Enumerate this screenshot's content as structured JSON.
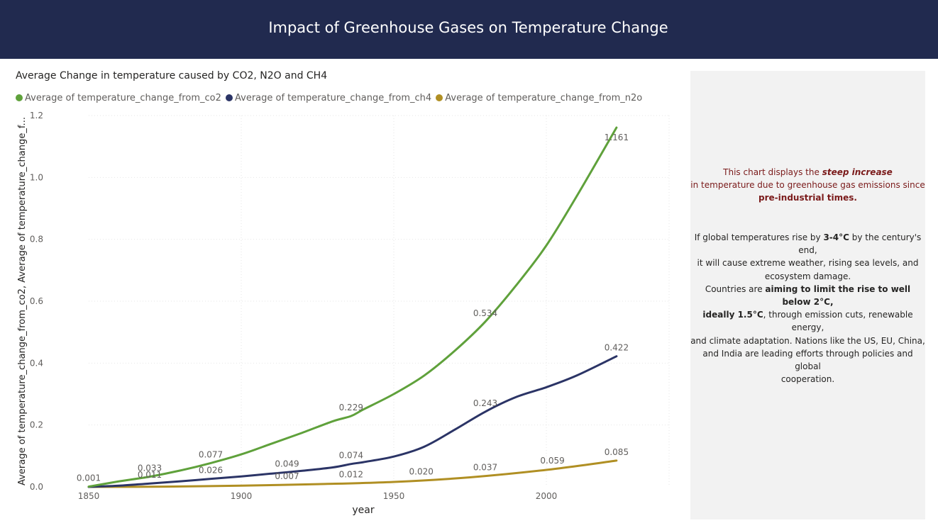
{
  "header": {
    "title": "Impact of Greenhouse Gases on Temperature Change",
    "background": "#212a4f"
  },
  "chart_title": "Average Change in temperature caused by CO2, N2O and CH4",
  "legend": [
    {
      "label": "Average of temperature_change_from_co2",
      "color": "#5fa13b"
    },
    {
      "label": "Average of temperature_change_from_ch4",
      "color": "#2b3466"
    },
    {
      "label": "Average of temperature_change_from_n2o",
      "color": "#b08f23"
    }
  ],
  "panel": {
    "note1_line1_a": "This chart displays the ",
    "note1_line1_b": "steep increase",
    "note1_line2": "in temperature due to greenhouse gas emissions since",
    "note1_line3": "pre-industrial times.",
    "note2_line1_a": "If global temperatures rise by ",
    "note2_line1_b": "3-4°C",
    "note2_line1_c": " by the century's end,",
    "note2_line2": "it will cause extreme weather, rising sea levels, and",
    "note2_line3": "ecosystem damage.",
    "note2_line4_a": "Countries are ",
    "note2_line4_b": "aiming to limit the rise to well below 2°C,",
    "note2_line5_a": "ideally 1.5°C",
    "note2_line5_b": ", through emission cuts, renewable energy,",
    "note2_line6": "and climate adaptation. Nations like the US, EU, China,",
    "note2_line7": "and India are leading efforts through policies and global",
    "note2_line8": "cooperation."
  },
  "chart_data": {
    "type": "line",
    "title": "Average Change in temperature caused by CO2, N2O and CH4",
    "xlabel": "year",
    "ylabel": "Average of temperature_change_from_co2, Average of temperature_change_f...",
    "xlim": [
      1850,
      2023
    ],
    "ylim": [
      0,
      1.2
    ],
    "xticks": [
      1850,
      1900,
      1950,
      2000
    ],
    "yticks": [
      0,
      0.2,
      0.4,
      0.6,
      0.8,
      1.0,
      1.2
    ],
    "ytick_labels": [
      "0.0",
      "0.2",
      "0.4",
      "0.6",
      "0.8",
      "1.0",
      "1.2"
    ],
    "grid": true,
    "legend_position": "top-left",
    "series": [
      {
        "name": "Average of temperature_change_from_co2",
        "color": "#5fa13b",
        "x": [
          1850,
          1860,
          1870,
          1880,
          1890,
          1900,
          1910,
          1920,
          1930,
          1936,
          1940,
          1950,
          1960,
          1970,
          1980,
          1990,
          2000,
          2010,
          2023
        ],
        "y": [
          0.001,
          0.018,
          0.033,
          0.053,
          0.077,
          0.105,
          0.14,
          0.175,
          0.212,
          0.229,
          0.25,
          0.3,
          0.36,
          0.44,
          0.534,
          0.65,
          0.78,
          0.94,
          1.161
        ]
      },
      {
        "name": "Average of temperature_change_from_ch4",
        "color": "#2b3466",
        "x": [
          1850,
          1860,
          1870,
          1880,
          1890,
          1900,
          1910,
          1920,
          1930,
          1936,
          1940,
          1950,
          1960,
          1970,
          1980,
          1990,
          2000,
          2010,
          2023
        ],
        "y": [
          0.0,
          0.004,
          0.011,
          0.018,
          0.026,
          0.034,
          0.043,
          0.052,
          0.063,
          0.074,
          0.08,
          0.098,
          0.13,
          0.185,
          0.243,
          0.29,
          0.322,
          0.36,
          0.422
        ]
      },
      {
        "name": "Average of temperature_change_from_n2o",
        "color": "#b08f23",
        "x": [
          1850,
          1875,
          1900,
          1925,
          1950,
          1975,
          2000,
          2023
        ],
        "y": [
          0.0,
          0.001,
          0.004,
          0.009,
          0.016,
          0.031,
          0.055,
          0.085
        ]
      }
    ],
    "data_labels": [
      {
        "series": 0,
        "x": 1850,
        "text": "0.001"
      },
      {
        "series": 0,
        "x": 1870,
        "text": "0.033"
      },
      {
        "series": 0,
        "x": 1890,
        "text": "0.077"
      },
      {
        "series": 0,
        "x": 1936,
        "text": "0.229"
      },
      {
        "series": 0,
        "x": 1980,
        "text": "0.534"
      },
      {
        "series": 0,
        "x": 2023,
        "text": "1.161"
      },
      {
        "series": 1,
        "x": 1870,
        "text": "0.011"
      },
      {
        "series": 1,
        "x": 1890,
        "text": "0.026"
      },
      {
        "series": 1,
        "x": 1915,
        "text": "0.049"
      },
      {
        "series": 1,
        "x": 1936,
        "text": "0.074"
      },
      {
        "series": 1,
        "x": 1980,
        "text": "0.243"
      },
      {
        "series": 1,
        "x": 2023,
        "text": "0.422"
      },
      {
        "series": 2,
        "x": 1915,
        "text": "0.007"
      },
      {
        "series": 2,
        "x": 1936,
        "text": "0.012"
      },
      {
        "series": 2,
        "x": 1959,
        "text": "0.020"
      },
      {
        "series": 2,
        "x": 1980,
        "text": "0.037"
      },
      {
        "series": 2,
        "x": 2002,
        "text": "0.059"
      },
      {
        "series": 2,
        "x": 2023,
        "text": "0.085"
      }
    ]
  }
}
